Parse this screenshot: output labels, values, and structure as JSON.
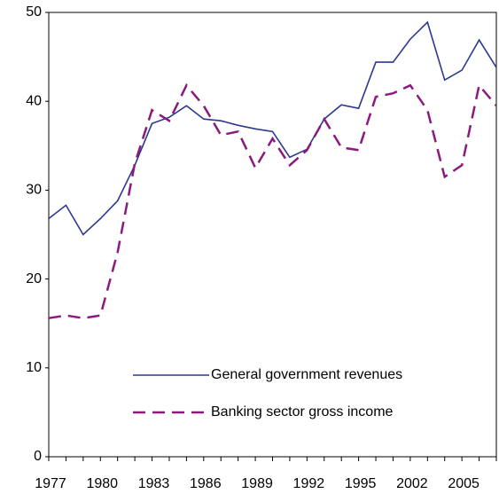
{
  "chart_data": {
    "type": "line",
    "categories": [
      "1977",
      null,
      null,
      "1980",
      null,
      null,
      "1983",
      null,
      null,
      "1986",
      null,
      null,
      "1989",
      null,
      null,
      "1992",
      null,
      null,
      "1995",
      null,
      null,
      "2002",
      null,
      null,
      "2005",
      null,
      null
    ],
    "series": [
      {
        "name": "General government revenues",
        "color": "#2b3990",
        "dash": false,
        "values": [
          26.8,
          28.3,
          25.0,
          26.8,
          28.8,
          32.8,
          37.5,
          38.2,
          39.5,
          38.0,
          37.8,
          37.3,
          36.9,
          36.6,
          33.7,
          34.6,
          38.0,
          39.6,
          39.2,
          44.4,
          44.4,
          47.0,
          48.9,
          42.4,
          43.5,
          46.9,
          43.8
        ]
      },
      {
        "name": "Banking sector gross income",
        "color": "#8b1a7e",
        "dash": true,
        "values": [
          15.6,
          15.9,
          15.6,
          15.9,
          23.0,
          33.0,
          39.0,
          37.8,
          41.8,
          39.5,
          36.2,
          36.6,
          32.5,
          35.8,
          32.8,
          34.5,
          38.0,
          34.8,
          34.5,
          40.5,
          40.9,
          41.8,
          39.0,
          31.5,
          32.8,
          41.8,
          39.5
        ]
      }
    ],
    "ylim": [
      0,
      50
    ],
    "yticks": [
      0,
      10,
      20,
      30,
      40,
      50
    ],
    "grid": false,
    "legend": "lower center"
  }
}
